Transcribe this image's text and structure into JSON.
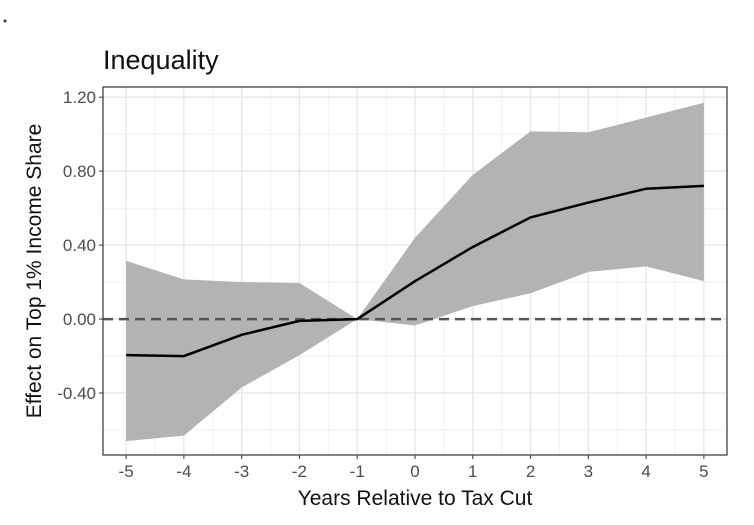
{
  "chart_data": {
    "type": "line",
    "title": "Inequality",
    "xlabel": "Years Relative to Tax Cut",
    "ylabel": "Effect on Top 1% Income Share",
    "x": [
      -5,
      -4,
      -3,
      -2,
      -1,
      0,
      1,
      2,
      3,
      4,
      5
    ],
    "series": [
      {
        "values": [
          -0.195,
          -0.2,
          -0.085,
          -0.01,
          0.0,
          0.205,
          0.39,
          0.55,
          0.63,
          0.705,
          0.72
        ],
        "ci_upper": [
          0.315,
          0.215,
          0.2,
          0.195,
          0.0,
          0.44,
          0.78,
          1.015,
          1.01,
          1.09,
          1.17
        ],
        "ci_lower": [
          -0.66,
          -0.63,
          -0.37,
          -0.195,
          0.0,
          -0.035,
          0.07,
          0.14,
          0.255,
          0.285,
          0.205
        ]
      }
    ],
    "reference_line": {
      "y": 0,
      "style": "dashed"
    },
    "xticks": [
      "-5",
      "-4",
      "-3",
      "-2",
      "-1",
      "0",
      "1",
      "2",
      "3",
      "4",
      "5"
    ],
    "yticks": [
      "-0.40",
      "0.00",
      "0.40",
      "0.80",
      "1.20"
    ],
    "xlim": [
      -5.4,
      5.4
    ],
    "ylim": [
      -0.735,
      1.255
    ],
    "grid": true,
    "colors": {
      "line": "#000000",
      "band": "#b3b3b3",
      "reference": "#555555",
      "grid": "#e6e6e6"
    }
  }
}
